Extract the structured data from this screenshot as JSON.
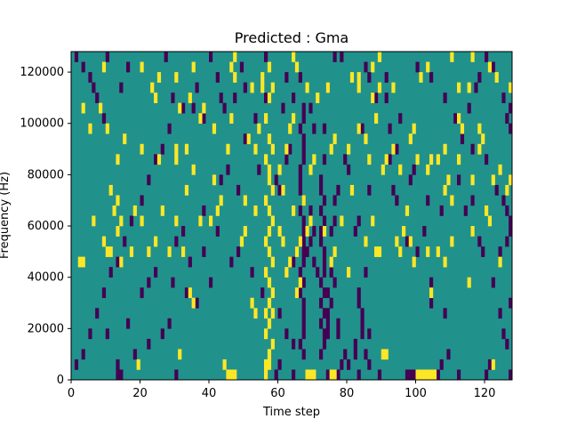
{
  "chart_data": {
    "type": "heatmap",
    "title": "Predicted : Gma",
    "xlabel": "Time step",
    "ylabel": "Frequency (Hz)",
    "xlim": [
      0,
      128
    ],
    "ylim": [
      0,
      128000
    ],
    "x_ticks": [
      0,
      20,
      40,
      60,
      80,
      100,
      120
    ],
    "y_ticks": [
      0,
      20000,
      40000,
      60000,
      80000,
      100000,
      120000
    ],
    "x_tick_labels": [
      "0",
      "20",
      "40",
      "60",
      "80",
      "100",
      "120"
    ],
    "y_tick_labels": [
      "0",
      "20000",
      "40000",
      "60000",
      "80000",
      "100000",
      "120000"
    ],
    "grid": false,
    "legend": "none",
    "colors": {
      "background": "#21918c",
      "high": "#fde725",
      "low": "#440154"
    },
    "value_levels": [
      -1,
      0,
      1
    ],
    "background_value": 0,
    "row_height_hz": 4000,
    "cells_high": [
      [
        56,
        0
      ],
      [
        56,
        1
      ],
      [
        57,
        1
      ],
      [
        57,
        2
      ],
      [
        58,
        3
      ],
      [
        56,
        4
      ],
      [
        57,
        5
      ],
      [
        58,
        6
      ],
      [
        56,
        6
      ],
      [
        57,
        7
      ],
      [
        58,
        8
      ],
      [
        57,
        9
      ],
      [
        56,
        10
      ],
      [
        58,
        11
      ],
      [
        57,
        12
      ],
      [
        56,
        13
      ],
      [
        57,
        14
      ],
      [
        58,
        15
      ],
      [
        57,
        16
      ],
      [
        56,
        17
      ],
      [
        58,
        18
      ],
      [
        57,
        19
      ],
      [
        57,
        20
      ],
      [
        56,
        21
      ],
      [
        58,
        22
      ],
      [
        56,
        25
      ],
      [
        57,
        27
      ],
      [
        58,
        28
      ],
      [
        55,
        29
      ],
      [
        45,
        0
      ],
      [
        46,
        0
      ],
      [
        47,
        0
      ],
      [
        19,
        1
      ],
      [
        31,
        2
      ],
      [
        44,
        1
      ],
      [
        68,
        0
      ],
      [
        69,
        0
      ],
      [
        70,
        0
      ],
      [
        75,
        0
      ],
      [
        76,
        0
      ],
      [
        90,
        2
      ],
      [
        91,
        2
      ],
      [
        100,
        0
      ],
      [
        101,
        0
      ],
      [
        102,
        0
      ],
      [
        103,
        0
      ],
      [
        104,
        0
      ],
      [
        105,
        0
      ],
      [
        122,
        1
      ],
      [
        35,
        7
      ],
      [
        34,
        8
      ],
      [
        52,
        7
      ],
      [
        53,
        6
      ],
      [
        65,
        8
      ],
      [
        66,
        9
      ],
      [
        88,
        12
      ],
      [
        89,
        12
      ],
      [
        104,
        8
      ],
      [
        115,
        9
      ],
      [
        13,
        14
      ],
      [
        14,
        15
      ],
      [
        13,
        17
      ],
      [
        12,
        16
      ],
      [
        30,
        15
      ],
      [
        40,
        15
      ],
      [
        68,
        14
      ],
      [
        69,
        15
      ],
      [
        62,
        10
      ],
      [
        63,
        11
      ],
      [
        61,
        13
      ],
      [
        60,
        14
      ],
      [
        64,
        16
      ],
      [
        75,
        11
      ],
      [
        76,
        12
      ],
      [
        80,
        10
      ],
      [
        94,
        13
      ],
      [
        95,
        12
      ],
      [
        96,
        14
      ],
      [
        97,
        16
      ],
      [
        98,
        13
      ],
      [
        103,
        12
      ],
      [
        2,
        11
      ],
      [
        3,
        11
      ],
      [
        11,
        12
      ],
      [
        14,
        11
      ],
      [
        17,
        12
      ],
      [
        24,
        13
      ],
      [
        32,
        12
      ],
      [
        37,
        15
      ],
      [
        49,
        13
      ],
      [
        50,
        14
      ],
      [
        65,
        12
      ],
      [
        66,
        13
      ],
      [
        87,
        15
      ],
      [
        99,
        11
      ],
      [
        106,
        12
      ],
      [
        110,
        13
      ],
      [
        116,
        14
      ],
      [
        124,
        11
      ],
      [
        9,
        13
      ],
      [
        10,
        12
      ],
      [
        28,
        12
      ],
      [
        22,
        12
      ],
      [
        85,
        13
      ],
      [
        6,
        15
      ],
      [
        26,
        16
      ],
      [
        50,
        17
      ],
      [
        53,
        16
      ],
      [
        67,
        17
      ],
      [
        73,
        14
      ],
      [
        81,
        18
      ],
      [
        61,
        18
      ],
      [
        78,
        15
      ],
      [
        108,
        11
      ],
      [
        41,
        19
      ],
      [
        11,
        18
      ],
      [
        20,
        15
      ],
      [
        18,
        16
      ],
      [
        33,
        18
      ],
      [
        43,
        17
      ],
      [
        42,
        16
      ],
      [
        60,
        20
      ],
      [
        120,
        16
      ],
      [
        121,
        15
      ],
      [
        108,
        18
      ],
      [
        109,
        19
      ],
      [
        116,
        19
      ],
      [
        106,
        21
      ],
      [
        103,
        20
      ],
      [
        104,
        21
      ],
      [
        122,
        19
      ],
      [
        126,
        18
      ],
      [
        127,
        19
      ],
      [
        124,
        20
      ],
      [
        110,
        17
      ],
      [
        53,
        22
      ],
      [
        54,
        24
      ],
      [
        57,
        23
      ],
      [
        69,
        20
      ],
      [
        70,
        21
      ],
      [
        75,
        22
      ],
      [
        76,
        23
      ],
      [
        80,
        22
      ],
      [
        86,
        21
      ],
      [
        90,
        20
      ],
      [
        91,
        21
      ],
      [
        100,
        21
      ],
      [
        118,
        22
      ],
      [
        13,
        21
      ],
      [
        20,
        22
      ],
      [
        25,
        21
      ],
      [
        30,
        22
      ],
      [
        35,
        20
      ],
      [
        45,
        22
      ],
      [
        51,
        23
      ],
      [
        63,
        24
      ],
      [
        64,
        25
      ],
      [
        83,
        24
      ],
      [
        85,
        23
      ],
      [
        93,
        22
      ],
      [
        95,
        20
      ],
      [
        108,
        22
      ],
      [
        112,
        21
      ],
      [
        5,
        24
      ],
      [
        10,
        24
      ],
      [
        15,
        23
      ],
      [
        30,
        21
      ],
      [
        33,
        22
      ],
      [
        41,
        24
      ],
      [
        46,
        25
      ],
      [
        62,
        22
      ],
      [
        83,
        28
      ],
      [
        98,
        23
      ],
      [
        99,
        24
      ],
      [
        113,
        24
      ],
      [
        112,
        25
      ],
      [
        118,
        24
      ],
      [
        119,
        23
      ],
      [
        3,
        26
      ],
      [
        31,
        26
      ],
      [
        37,
        25
      ],
      [
        38,
        26
      ],
      [
        71,
        27
      ],
      [
        87,
        27
      ],
      [
        88,
        25
      ],
      [
        89,
        28
      ],
      [
        101,
        29
      ],
      [
        23,
        28
      ],
      [
        24,
        27
      ],
      [
        30,
        29
      ],
      [
        34,
        27
      ],
      [
        47,
        29
      ],
      [
        52,
        28
      ],
      [
        55,
        28
      ],
      [
        68,
        28
      ],
      [
        74,
        28
      ],
      [
        81,
        29
      ],
      [
        83,
        29
      ],
      [
        93,
        28
      ],
      [
        112,
        28
      ],
      [
        20,
        30
      ],
      [
        25,
        29
      ],
      [
        35,
        30
      ],
      [
        47,
        31
      ],
      [
        57,
        30
      ],
      [
        89,
        31
      ],
      [
        103,
        30
      ],
      [
        115,
        28
      ],
      [
        127,
        28
      ],
      [
        8,
        26
      ],
      [
        110,
        31
      ],
      [
        123,
        29
      ],
      [
        121,
        30
      ],
      [
        87,
        30
      ],
      [
        64,
        31
      ],
      [
        65,
        30
      ],
      [
        46,
        30
      ],
      [
        9,
        30
      ],
      [
        116,
        31
      ]
    ],
    "cells_low": [
      [
        13,
        1
      ],
      [
        14,
        0
      ],
      [
        13,
        0
      ],
      [
        30,
        0
      ],
      [
        59,
        0
      ],
      [
        60,
        1
      ],
      [
        64,
        0
      ],
      [
        74,
        0
      ],
      [
        77,
        0
      ],
      [
        78,
        1
      ],
      [
        79,
        2
      ],
      [
        80,
        1
      ],
      [
        83,
        0
      ],
      [
        85,
        2
      ],
      [
        86,
        1
      ],
      [
        89,
        0
      ],
      [
        97,
        0
      ],
      [
        98,
        0
      ],
      [
        99,
        0
      ],
      [
        106,
        0
      ],
      [
        107,
        1
      ],
      [
        112,
        0
      ],
      [
        120,
        0
      ],
      [
        121,
        1
      ],
      [
        127,
        0
      ],
      [
        109,
        2
      ],
      [
        67,
        2
      ],
      [
        66,
        3
      ],
      [
        67,
        4
      ],
      [
        67,
        5
      ],
      [
        67,
        6
      ],
      [
        67,
        7
      ],
      [
        66,
        8
      ],
      [
        67,
        9
      ],
      [
        66,
        10
      ],
      [
        67,
        11
      ],
      [
        67,
        12
      ],
      [
        67,
        13
      ],
      [
        67,
        14
      ],
      [
        67,
        15
      ],
      [
        66,
        16
      ],
      [
        67,
        17
      ],
      [
        66,
        18
      ],
      [
        66,
        19
      ],
      [
        66,
        20
      ],
      [
        67,
        21
      ],
      [
        67,
        22
      ],
      [
        67,
        23
      ],
      [
        66,
        24
      ],
      [
        67,
        25
      ],
      [
        67,
        26
      ],
      [
        72,
        2
      ],
      [
        73,
        3
      ],
      [
        73,
        4
      ],
      [
        72,
        5
      ],
      [
        73,
        6
      ],
      [
        72,
        7
      ],
      [
        73,
        8
      ],
      [
        72,
        9
      ],
      [
        73,
        10
      ],
      [
        73,
        11
      ],
      [
        73,
        12
      ],
      [
        72,
        13
      ],
      [
        72,
        14
      ],
      [
        73,
        15
      ],
      [
        72,
        16
      ],
      [
        73,
        17
      ],
      [
        72,
        18
      ],
      [
        72,
        19
      ],
      [
        74,
        4
      ],
      [
        74,
        5
      ],
      [
        74,
        6
      ],
      [
        74,
        8
      ],
      [
        75,
        7
      ],
      [
        76,
        9
      ],
      [
        75,
        10
      ],
      [
        75,
        14
      ],
      [
        76,
        15
      ],
      [
        77,
        4
      ],
      [
        77,
        5
      ],
      [
        82,
        2
      ],
      [
        82,
        3
      ],
      [
        84,
        4
      ],
      [
        84,
        5
      ],
      [
        84,
        6
      ],
      [
        86,
        4
      ],
      [
        83,
        8
      ],
      [
        83,
        7
      ],
      [
        82,
        14
      ],
      [
        83,
        15
      ],
      [
        64,
        11
      ],
      [
        65,
        12
      ],
      [
        68,
        12
      ],
      [
        69,
        13
      ],
      [
        66,
        13
      ],
      [
        59,
        19
      ],
      [
        60,
        18
      ],
      [
        62,
        21
      ],
      [
        63,
        22
      ],
      [
        73,
        21
      ],
      [
        77,
        18
      ],
      [
        76,
        17
      ],
      [
        70,
        11
      ],
      [
        71,
        10
      ],
      [
        70,
        14
      ],
      [
        69,
        16
      ],
      [
        80,
        20
      ],
      [
        85,
        10
      ],
      [
        86,
        18
      ],
      [
        94,
        22
      ],
      [
        98,
        19
      ],
      [
        99,
        20
      ],
      [
        103,
        17
      ],
      [
        107,
        16
      ],
      [
        115,
        26
      ],
      [
        117,
        28
      ],
      [
        119,
        12
      ],
      [
        118,
        13
      ],
      [
        114,
        16
      ],
      [
        116,
        17
      ],
      [
        112,
        19
      ],
      [
        108,
        6
      ],
      [
        104,
        9
      ],
      [
        104,
        7
      ],
      [
        100,
        12
      ],
      [
        102,
        14
      ],
      [
        93,
        18
      ],
      [
        94,
        17
      ],
      [
        97,
        13
      ],
      [
        92,
        21
      ],
      [
        91,
        29
      ],
      [
        91,
        27
      ],
      [
        86,
        29
      ],
      [
        85,
        30
      ],
      [
        78,
        31
      ],
      [
        76,
        31
      ],
      [
        74,
        28
      ],
      [
        70,
        24
      ],
      [
        66,
        29
      ],
      [
        61,
        26
      ],
      [
        56,
        27
      ],
      [
        50,
        28
      ],
      [
        47,
        27
      ],
      [
        44,
        26
      ],
      [
        42,
        29
      ],
      [
        40,
        31
      ],
      [
        36,
        28
      ],
      [
        32,
        26
      ],
      [
        28,
        24
      ],
      [
        26,
        22
      ],
      [
        24,
        21
      ],
      [
        22,
        19
      ],
      [
        20,
        17
      ],
      [
        17,
        15
      ],
      [
        15,
        13
      ],
      [
        13,
        11
      ],
      [
        11,
        10
      ],
      [
        9,
        8
      ],
      [
        7,
        6
      ],
      [
        5,
        4
      ],
      [
        3,
        2
      ],
      [
        1,
        1
      ],
      [
        1,
        31
      ],
      [
        3,
        30
      ],
      [
        5,
        29
      ],
      [
        7,
        27
      ],
      [
        9,
        25
      ],
      [
        10,
        31
      ],
      [
        6,
        28
      ],
      [
        14,
        28
      ],
      [
        16,
        30
      ],
      [
        27,
        31
      ],
      [
        29,
        27
      ],
      [
        35,
        26
      ],
      [
        38,
        25
      ],
      [
        43,
        27
      ],
      [
        49,
        30
      ],
      [
        53,
        25
      ],
      [
        56,
        31
      ],
      [
        62,
        29
      ],
      [
        64,
        27
      ],
      [
        69,
        26
      ],
      [
        73,
        24
      ],
      [
        79,
        21
      ],
      [
        84,
        24
      ],
      [
        88,
        27
      ],
      [
        92,
        24
      ],
      [
        95,
        25
      ],
      [
        100,
        30
      ],
      [
        104,
        29
      ],
      [
        108,
        27
      ],
      [
        111,
        25
      ],
      [
        113,
        23
      ],
      [
        116,
        22
      ],
      [
        120,
        21
      ],
      [
        123,
        18
      ],
      [
        125,
        17
      ],
      [
        126,
        16
      ],
      [
        127,
        15
      ],
      [
        127,
        14
      ],
      [
        126,
        13
      ],
      [
        124,
        12
      ],
      [
        122,
        9
      ],
      [
        124,
        6
      ],
      [
        127,
        7
      ],
      [
        125,
        4
      ],
      [
        126,
        3
      ],
      [
        127,
        24
      ],
      [
        126,
        25
      ],
      [
        127,
        26
      ],
      [
        125,
        27
      ],
      [
        122,
        30
      ],
      [
        120,
        31
      ],
      [
        118,
        29
      ],
      [
        20,
        8
      ],
      [
        22,
        9
      ],
      [
        24,
        10
      ],
      [
        30,
        13
      ],
      [
        32,
        14
      ],
      [
        38,
        16
      ],
      [
        43,
        19
      ],
      [
        45,
        20
      ],
      [
        48,
        18
      ],
      [
        50,
        23
      ],
      [
        54,
        20
      ],
      [
        28,
        5
      ],
      [
        26,
        4
      ],
      [
        22,
        3
      ],
      [
        18,
        2
      ],
      [
        16,
        5
      ],
      [
        10,
        4
      ],
      [
        33,
        8
      ],
      [
        36,
        7
      ],
      [
        40,
        9
      ],
      [
        46,
        11
      ],
      [
        42,
        14
      ],
      [
        38,
        12
      ],
      [
        34,
        11
      ],
      [
        29,
        9
      ],
      [
        60,
        6
      ],
      [
        62,
        4
      ],
      [
        64,
        3
      ],
      [
        55,
        8
      ],
      [
        52,
        10
      ],
      [
        48,
        12
      ]
    ]
  }
}
